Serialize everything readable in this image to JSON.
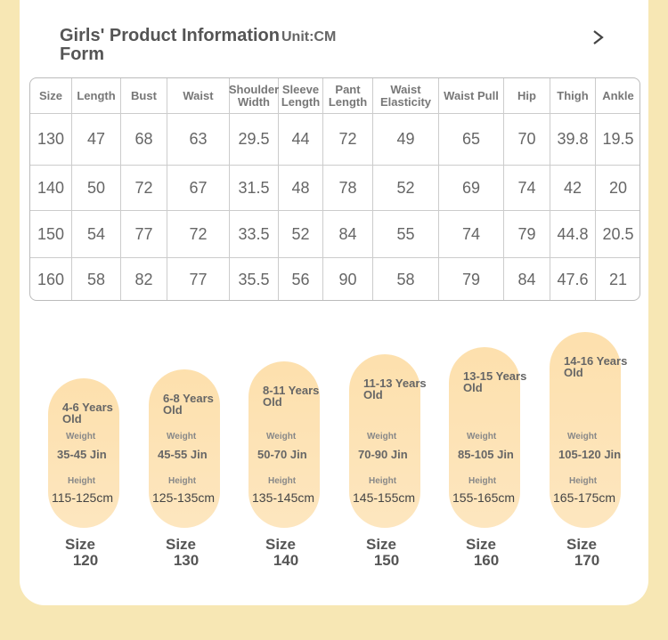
{
  "header": {
    "title": "Girls' Product Information Form",
    "unit": "Unit:CM"
  },
  "table": {
    "columns": [
      "Size",
      "Length",
      "Bust",
      "Waist",
      "Shoulder Width",
      "Sleeve Length",
      "Pant Length",
      "Waist Elasticity",
      "Waist Pull",
      "Hip",
      "Thigh",
      "Ankle"
    ],
    "rows": [
      [
        "130",
        "47",
        "68",
        "63",
        "29.5",
        "44",
        "72",
        "49",
        "65",
        "70",
        "39.8",
        "19.5"
      ],
      [
        "140",
        "50",
        "72",
        "67",
        "31.5",
        "48",
        "78",
        "52",
        "69",
        "74",
        "42",
        "20"
      ],
      [
        "150",
        "54",
        "77",
        "72",
        "33.5",
        "52",
        "84",
        "55",
        "74",
        "79",
        "44.8",
        "20.5"
      ],
      [
        "160",
        "58",
        "82",
        "77",
        "35.5",
        "56",
        "90",
        "58",
        "79",
        "84",
        "47.6",
        "21"
      ]
    ]
  },
  "cards": [
    {
      "age": "4-6 Years Old",
      "weight_label": "Weight",
      "weight": "35-45 Jin",
      "height_label": "Height",
      "height": "115-125cm",
      "size_label": "Size",
      "size": "120"
    },
    {
      "age": "6-8 Years Old",
      "weight_label": "Weight",
      "weight": "45-55 Jin",
      "height_label": "Height",
      "height": "125-135cm",
      "size_label": "Size",
      "size": "130"
    },
    {
      "age": "8-11 Years Old",
      "weight_label": "Weight",
      "weight": "50-70 Jin",
      "height_label": "Height",
      "height": "135-145cm",
      "size_label": "Size",
      "size": "140"
    },
    {
      "age": "11-13 Years Old",
      "weight_label": "Weight",
      "weight": "70-90 Jin",
      "height_label": "Height",
      "height": "145-155cm",
      "size_label": "Size",
      "size": "150"
    },
    {
      "age": "13-15 Years Old",
      "weight_label": "Weight",
      "weight": "85-105 Jin",
      "height_label": "Height",
      "height": "155-165cm",
      "size_label": "Size",
      "size": "160"
    },
    {
      "age": "14-16 Years Old",
      "weight_label": "Weight",
      "weight": "105-120 Jin",
      "height_label": "Height",
      "height": "165-175cm",
      "size_label": "Size",
      "size": "170"
    }
  ]
}
